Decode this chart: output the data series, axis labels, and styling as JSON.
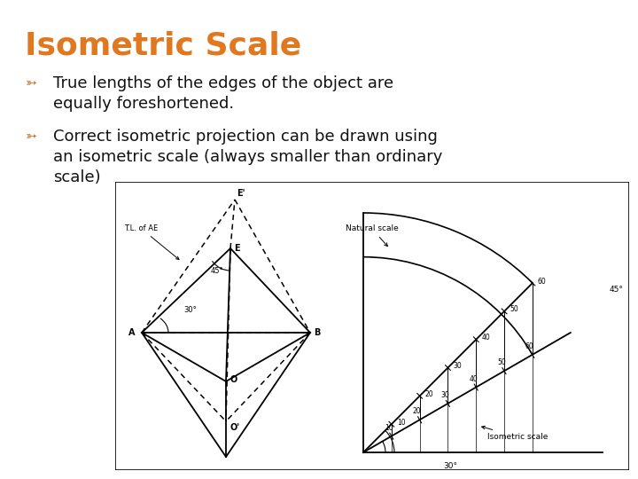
{
  "title": "Isometric Scale",
  "title_color": "#E07820",
  "title_fontsize": 26,
  "bg_color": "#FFFFFF",
  "diagram_bg": "#E8E8E8",
  "bullet_color": "#C87020",
  "bullet1_line1": "True lengths of the edges of the object are",
  "bullet1_line2": "equally foreshortened.",
  "bullet2_line1": "Correct isometric projection can be drawn using",
  "bullet2_line2": "an isometric scale (always smaller than ordinary",
  "bullet2_line3": "scale)",
  "text_color": "#111111",
  "text_fontsize": 13.0
}
